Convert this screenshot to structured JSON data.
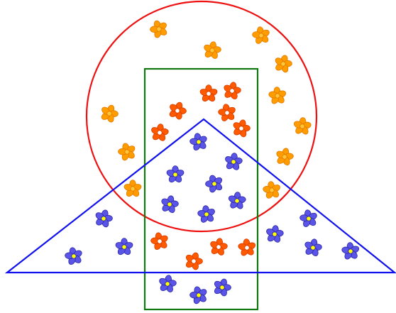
{
  "diagram": {
    "type": "set-membership diagram (circle, rectangle, triangle) with flower icons",
    "regions": [
      {
        "name": "circle",
        "outline_color": "#ee1111"
      },
      {
        "name": "rectangle",
        "outline_color": "#117711"
      },
      {
        "name": "triangle",
        "outline_color": "#1111ee"
      }
    ],
    "flower_kinds": {
      "orange-flower": {
        "petal": "#ff9c00",
        "stroke": "#e07a00",
        "center": "#ffc63a"
      },
      "red-flower": {
        "petal": "#ff5a00",
        "stroke": "#d23c00",
        "center": "#ffffff"
      },
      "blue-flower": {
        "petal": "#5a55e6",
        "stroke": "#2b27a6",
        "center": "#ffff00"
      }
    },
    "counts": {
      "orange-flower": 13,
      "red-flower": 12,
      "blue-flower": 20,
      "total": 45
    }
  }
}
